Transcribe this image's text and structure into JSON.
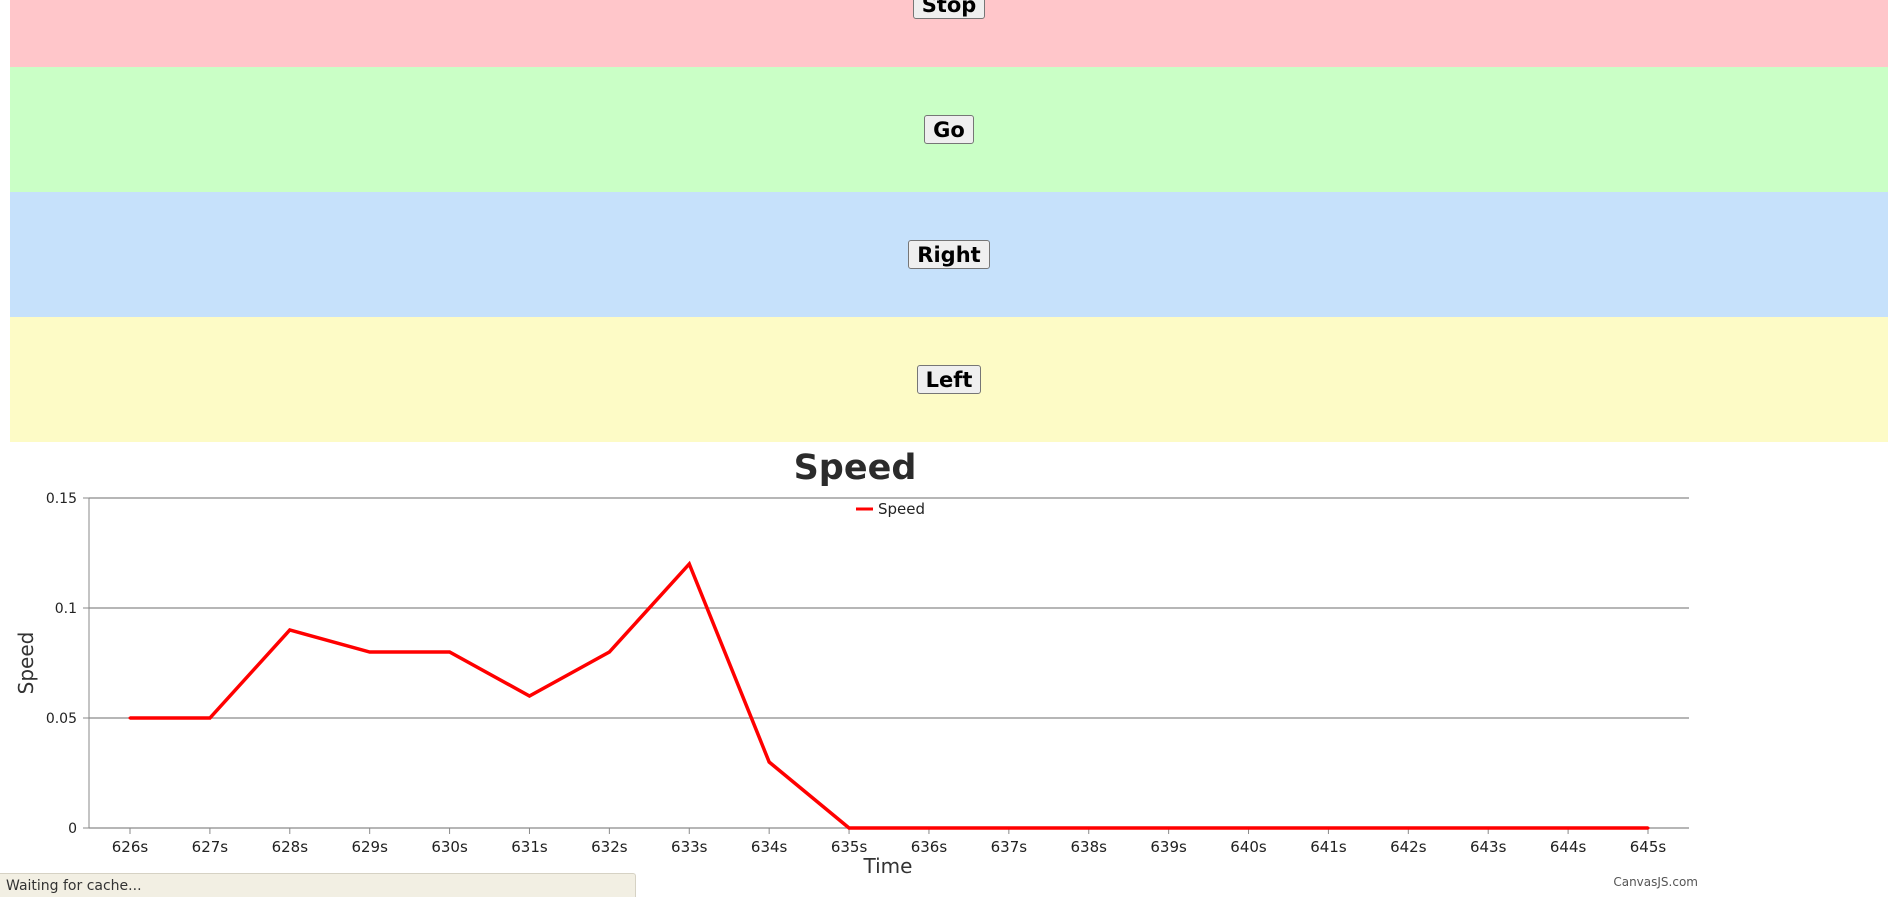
{
  "controls": {
    "stop_label": "Stop",
    "go_label": "Go",
    "right_label": "Right",
    "left_label": "Left"
  },
  "colors": {
    "stop_band": "#ffc6ca",
    "go_band": "#caffc6",
    "right_band": "#c6e1fb",
    "left_band": "#fdfbc6",
    "series": "#ff0000"
  },
  "chart_data": {
    "type": "line",
    "title": "Speed",
    "xlabel": "Time",
    "ylabel": "Speed",
    "ylim": [
      0,
      0.15
    ],
    "y_ticks": [
      "0",
      "0.05",
      "0.1",
      "0.15"
    ],
    "y_tick_values": [
      0,
      0.05,
      0.1,
      0.15
    ],
    "grid": true,
    "legend_placement": "top-center",
    "categories": [
      "626s",
      "627s",
      "628s",
      "629s",
      "630s",
      "631s",
      "632s",
      "633s",
      "634s",
      "635s",
      "636s",
      "637s",
      "638s",
      "639s",
      "640s",
      "641s",
      "642s",
      "643s",
      "644s",
      "645s"
    ],
    "series": [
      {
        "name": "Speed",
        "color": "#ff0000",
        "values": [
          0.05,
          0.05,
          0.09,
          0.08,
          0.08,
          0.06,
          0.08,
          0.12,
          0.03,
          0,
          0,
          0,
          0,
          0,
          0,
          0,
          0,
          0,
          0,
          0
        ]
      }
    ]
  },
  "credit": "CanvasJS.com",
  "status": {
    "text": "Waiting for cache..."
  }
}
